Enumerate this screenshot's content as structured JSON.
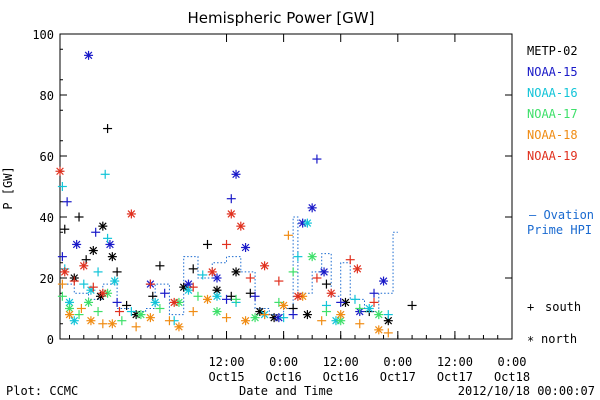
{
  "chart_data": {
    "type": "scatter",
    "title": "Hemispheric Power [GW]",
    "xlabel": "Date and Time",
    "ylabel": "P [GW]",
    "ylim": [
      0,
      100
    ],
    "xlim": [
      "2012-10-14T01:00",
      "2012-10-18T00:00"
    ],
    "y_ticks": [
      "0",
      "20",
      "40",
      "60",
      "80",
      "100"
    ],
    "x_ticks": [
      {
        "time": "12:00",
        "date": "Oct15"
      },
      {
        "time": "0:00",
        "date": "Oct16"
      },
      {
        "time": "12:00",
        "date": "Oct16"
      },
      {
        "time": "0:00",
        "date": "Oct17"
      },
      {
        "time": "12:00",
        "date": "Oct17"
      },
      {
        "time": "0:00",
        "date": "Oct18"
      }
    ],
    "legend": {
      "placement": "right",
      "entries": [
        {
          "label": "METP-02",
          "color": "#000000"
        },
        {
          "label": "NOAA-15",
          "color": "#1a1ac8"
        },
        {
          "label": "NOAA-16",
          "color": "#12c4d8"
        },
        {
          "label": "NOAA-17",
          "color": "#3ee06a"
        },
        {
          "label": "NOAA-18",
          "color": "#f08c14"
        },
        {
          "label": "NOAA-19",
          "color": "#e0301e"
        }
      ],
      "ovation_label_1": "— Ovation",
      "ovation_label_2": "Prime HPI",
      "south_label": "south",
      "north_label": "north"
    },
    "footer": {
      "left": "Plot: CCMC",
      "right": "2012/10/18 00:00:07"
    },
    "series": [
      {
        "name": "METP-02",
        "color": "#000000",
        "points": [
          [
            "2012-10-14T02:00",
            36,
            "s"
          ],
          [
            "2012-10-14T05:00",
            40,
            "s"
          ],
          [
            "2012-10-14T06:30",
            26,
            "s"
          ],
          [
            "2012-10-14T08:00",
            29,
            "n"
          ],
          [
            "2012-10-14T10:00",
            37,
            "n"
          ],
          [
            "2012-10-14T11:00",
            69,
            "s"
          ],
          [
            "2012-10-14T12:00",
            27,
            "n"
          ],
          [
            "2012-10-14T13:00",
            22,
            "s"
          ],
          [
            "2012-10-14T04:00",
            20,
            "n"
          ],
          [
            "2012-10-14T09:30",
            14,
            "n"
          ],
          [
            "2012-10-14T15:00",
            11,
            "s"
          ],
          [
            "2012-10-14T17:00",
            8,
            "n"
          ],
          [
            "2012-10-14T20:30",
            14,
            "s"
          ],
          [
            "2012-10-14T22:00",
            24,
            "s"
          ],
          [
            "2012-10-15T03:00",
            17,
            "n"
          ],
          [
            "2012-10-15T05:00",
            23,
            "s"
          ],
          [
            "2012-10-15T08:00",
            31,
            "s"
          ],
          [
            "2012-10-15T10:00",
            16,
            "n"
          ],
          [
            "2012-10-15T13:00",
            14,
            "s"
          ],
          [
            "2012-10-15T14:00",
            22,
            "n"
          ],
          [
            "2012-10-15T17:00",
            15,
            "s"
          ],
          [
            "2012-10-15T19:00",
            9,
            "n"
          ],
          [
            "2012-10-15T22:00",
            7,
            "n"
          ],
          [
            "2012-10-16T02:00",
            10,
            "s"
          ],
          [
            "2012-10-16T05:00",
            8,
            "n"
          ],
          [
            "2012-10-16T09:00",
            18,
            "s"
          ],
          [
            "2012-10-16T13:00",
            12,
            "n"
          ],
          [
            "2012-10-16T18:00",
            9,
            "s"
          ],
          [
            "2012-10-16T22:00",
            6,
            "n"
          ],
          [
            "2012-10-17T03:00",
            11,
            "s"
          ]
        ]
      },
      {
        "name": "NOAA-15",
        "color": "#1a1ac8",
        "points": [
          [
            "2012-10-14T01:30",
            27,
            "s"
          ],
          [
            "2012-10-14T02:30",
            45,
            "s"
          ],
          [
            "2012-10-14T04:30",
            31,
            "n"
          ],
          [
            "2012-10-14T07:00",
            93,
            "n"
          ],
          [
            "2012-10-14T08:30",
            35,
            "s"
          ],
          [
            "2012-10-14T11:30",
            31,
            "n"
          ],
          [
            "2012-10-14T13:00",
            12,
            "s"
          ],
          [
            "2012-10-14T20:00",
            18,
            "n"
          ],
          [
            "2012-10-14T23:00",
            15,
            "s"
          ],
          [
            "2012-10-15T04:00",
            18,
            "n"
          ],
          [
            "2012-10-15T10:00",
            20,
            "n"
          ],
          [
            "2012-10-15T12:00",
            13,
            "s"
          ],
          [
            "2012-10-15T13:00",
            46,
            "s"
          ],
          [
            "2012-10-15T14:00",
            54,
            "n"
          ],
          [
            "2012-10-15T16:00",
            30,
            "n"
          ],
          [
            "2012-10-15T18:00",
            14,
            "s"
          ],
          [
            "2012-10-15T23:00",
            7,
            "n"
          ],
          [
            "2012-10-16T02:00",
            8,
            "s"
          ],
          [
            "2012-10-16T04:00",
            38,
            "n"
          ],
          [
            "2012-10-16T06:00",
            43,
            "n"
          ],
          [
            "2012-10-16T07:00",
            59,
            "s"
          ],
          [
            "2012-10-16T08:30",
            22,
            "n"
          ],
          [
            "2012-10-16T12:00",
            12,
            "s"
          ],
          [
            "2012-10-16T16:00",
            9,
            "n"
          ],
          [
            "2012-10-16T19:00",
            15,
            "s"
          ],
          [
            "2012-10-16T21:00",
            19,
            "n"
          ]
        ]
      },
      {
        "name": "NOAA-16",
        "color": "#12c4d8",
        "points": [
          [
            "2012-10-14T01:30",
            50,
            "s"
          ],
          [
            "2012-10-14T02:00",
            23,
            "s"
          ],
          [
            "2012-10-14T03:00",
            12,
            "n"
          ],
          [
            "2012-10-14T04:00",
            6,
            "n"
          ],
          [
            "2012-10-14T06:00",
            18,
            "s"
          ],
          [
            "2012-10-14T07:30",
            16,
            "n"
          ],
          [
            "2012-10-14T09:00",
            22,
            "s"
          ],
          [
            "2012-10-14T10:30",
            54,
            "s"
          ],
          [
            "2012-10-14T11:00",
            33,
            "s"
          ],
          [
            "2012-10-14T12:30",
            19,
            "n"
          ],
          [
            "2012-10-14T16:00",
            9,
            "s"
          ],
          [
            "2012-10-14T21:00",
            12,
            "n"
          ],
          [
            "2012-10-15T01:00",
            6,
            "s"
          ],
          [
            "2012-10-15T04:00",
            16,
            "n"
          ],
          [
            "2012-10-15T07:00",
            21,
            "s"
          ],
          [
            "2012-10-15T10:00",
            14,
            "n"
          ],
          [
            "2012-10-15T14:00",
            12,
            "s"
          ],
          [
            "2012-10-15T20:00",
            8,
            "n"
          ],
          [
            "2012-10-16T00:00",
            7,
            "s"
          ],
          [
            "2012-10-16T03:00",
            27,
            "s"
          ],
          [
            "2012-10-16T05:00",
            38,
            "n"
          ],
          [
            "2012-10-16T09:00",
            11,
            "s"
          ],
          [
            "2012-10-16T11:00",
            6,
            "n"
          ],
          [
            "2012-10-16T15:00",
            13,
            "s"
          ],
          [
            "2012-10-16T18:00",
            10,
            "n"
          ],
          [
            "2012-10-16T22:00",
            8,
            "s"
          ]
        ]
      },
      {
        "name": "NOAA-17",
        "color": "#3ee06a",
        "points": [
          [
            "2012-10-14T01:30",
            14,
            "s"
          ],
          [
            "2012-10-14T03:00",
            10,
            "n"
          ],
          [
            "2012-10-14T05:00",
            8,
            "s"
          ],
          [
            "2012-10-14T07:00",
            12,
            "n"
          ],
          [
            "2012-10-14T09:00",
            9,
            "s"
          ],
          [
            "2012-10-14T11:00",
            15,
            "n"
          ],
          [
            "2012-10-14T14:00",
            6,
            "s"
          ],
          [
            "2012-10-14T18:00",
            8,
            "n"
          ],
          [
            "2012-10-14T22:00",
            10,
            "s"
          ],
          [
            "2012-10-15T02:00",
            12,
            "n"
          ],
          [
            "2012-10-15T06:00",
            14,
            "s"
          ],
          [
            "2012-10-15T10:00",
            9,
            "n"
          ],
          [
            "2012-10-15T14:00",
            13,
            "s"
          ],
          [
            "2012-10-15T18:00",
            7,
            "n"
          ],
          [
            "2012-10-15T23:00",
            12,
            "s"
          ],
          [
            "2012-10-16T02:00",
            22,
            "s"
          ],
          [
            "2012-10-16T06:00",
            27,
            "n"
          ],
          [
            "2012-10-16T09:00",
            9,
            "s"
          ],
          [
            "2012-10-16T12:00",
            6,
            "n"
          ],
          [
            "2012-10-16T16:00",
            10,
            "s"
          ],
          [
            "2012-10-16T20:00",
            8,
            "n"
          ]
        ]
      },
      {
        "name": "NOAA-18",
        "color": "#f08c14",
        "points": [
          [
            "2012-10-14T01:30",
            18,
            "s"
          ],
          [
            "2012-10-14T03:00",
            8,
            "n"
          ],
          [
            "2012-10-14T05:30",
            10,
            "s"
          ],
          [
            "2012-10-14T07:30",
            6,
            "n"
          ],
          [
            "2012-10-14T10:00",
            5,
            "s"
          ],
          [
            "2012-10-14T12:00",
            5,
            "n"
          ],
          [
            "2012-10-14T17:00",
            4,
            "s"
          ],
          [
            "2012-10-14T20:00",
            7,
            "n"
          ],
          [
            "2012-10-15T00:00",
            6,
            "s"
          ],
          [
            "2012-10-15T02:00",
            4,
            "n"
          ],
          [
            "2012-10-15T05:00",
            9,
            "s"
          ],
          [
            "2012-10-15T08:00",
            13,
            "n"
          ],
          [
            "2012-10-15T12:00",
            7,
            "s"
          ],
          [
            "2012-10-15T16:00",
            6,
            "n"
          ],
          [
            "2012-10-15T20:00",
            8,
            "s"
          ],
          [
            "2012-10-16T00:00",
            11,
            "n"
          ],
          [
            "2012-10-16T01:00",
            34,
            "s"
          ],
          [
            "2012-10-16T04:00",
            14,
            "n"
          ],
          [
            "2012-10-16T08:00",
            6,
            "s"
          ],
          [
            "2012-10-16T12:00",
            8,
            "n"
          ],
          [
            "2012-10-16T16:00",
            5,
            "s"
          ],
          [
            "2012-10-16T20:00",
            3,
            "n"
          ],
          [
            "2012-10-16T22:00",
            2,
            "s"
          ]
        ]
      },
      {
        "name": "NOAA-19",
        "color": "#e0301e",
        "points": [
          [
            "2012-10-14T01:00",
            55,
            "n"
          ],
          [
            "2012-10-14T02:00",
            22,
            "n"
          ],
          [
            "2012-10-14T04:00",
            19,
            "s"
          ],
          [
            "2012-10-14T06:00",
            24,
            "n"
          ],
          [
            "2012-10-14T08:00",
            17,
            "s"
          ],
          [
            "2012-10-14T10:00",
            15,
            "n"
          ],
          [
            "2012-10-14T13:30",
            9,
            "s"
          ],
          [
            "2012-10-14T16:00",
            41,
            "n"
          ],
          [
            "2012-10-14T20:00",
            18,
            "s"
          ],
          [
            "2012-10-15T01:00",
            12,
            "n"
          ],
          [
            "2012-10-15T05:00",
            17,
            "s"
          ],
          [
            "2012-10-15T09:00",
            22,
            "n"
          ],
          [
            "2012-10-15T12:00",
            31,
            "s"
          ],
          [
            "2012-10-15T13:00",
            41,
            "n"
          ],
          [
            "2012-10-15T15:00",
            37,
            "n"
          ],
          [
            "2012-10-15T17:00",
            20,
            "s"
          ],
          [
            "2012-10-15T20:00",
            24,
            "n"
          ],
          [
            "2012-10-15T23:00",
            19,
            "s"
          ],
          [
            "2012-10-16T03:00",
            14,
            "n"
          ],
          [
            "2012-10-16T07:00",
            20,
            "s"
          ],
          [
            "2012-10-16T10:00",
            15,
            "n"
          ],
          [
            "2012-10-16T14:00",
            26,
            "s"
          ],
          [
            "2012-10-16T15:30",
            23,
            "n"
          ],
          [
            "2012-10-16T19:00",
            12,
            "s"
          ]
        ]
      }
    ],
    "ovation_hpi": {
      "name": "Ovation Prime HPI",
      "color": "#1a6ad0",
      "steps": [
        [
          "2012-10-14T01:00",
          18
        ],
        [
          "2012-10-14T04:00",
          15
        ],
        [
          "2012-10-14T07:00",
          13
        ],
        [
          "2012-10-14T10:00",
          18
        ],
        [
          "2012-10-14T13:00",
          10
        ],
        [
          "2012-10-14T16:00",
          9
        ],
        [
          "2012-10-14T19:00",
          10
        ],
        [
          "2012-10-14T21:00",
          18
        ],
        [
          "2012-10-15T00:00",
          8
        ],
        [
          "2012-10-15T03:00",
          27
        ],
        [
          "2012-10-15T06:00",
          20
        ],
        [
          "2012-10-15T09:00",
          25
        ],
        [
          "2012-10-15T12:00",
          27
        ],
        [
          "2012-10-15T15:00",
          22
        ],
        [
          "2012-10-15T18:00",
          10
        ],
        [
          "2012-10-15T21:00",
          8
        ],
        [
          "2012-10-16T00:00",
          10
        ],
        [
          "2012-10-16T02:00",
          40
        ],
        [
          "2012-10-16T03:00",
          15
        ],
        [
          "2012-10-16T06:00",
          22
        ],
        [
          "2012-10-16T08:00",
          28
        ],
        [
          "2012-10-16T10:00",
          14
        ],
        [
          "2012-10-16T12:00",
          25
        ],
        [
          "2012-10-16T14:00",
          13
        ],
        [
          "2012-10-16T17:00",
          9
        ],
        [
          "2012-10-16T20:00",
          15
        ],
        [
          "2012-10-16T23:00",
          35
        ],
        [
          "2012-10-17T00:00",
          35
        ]
      ]
    }
  }
}
